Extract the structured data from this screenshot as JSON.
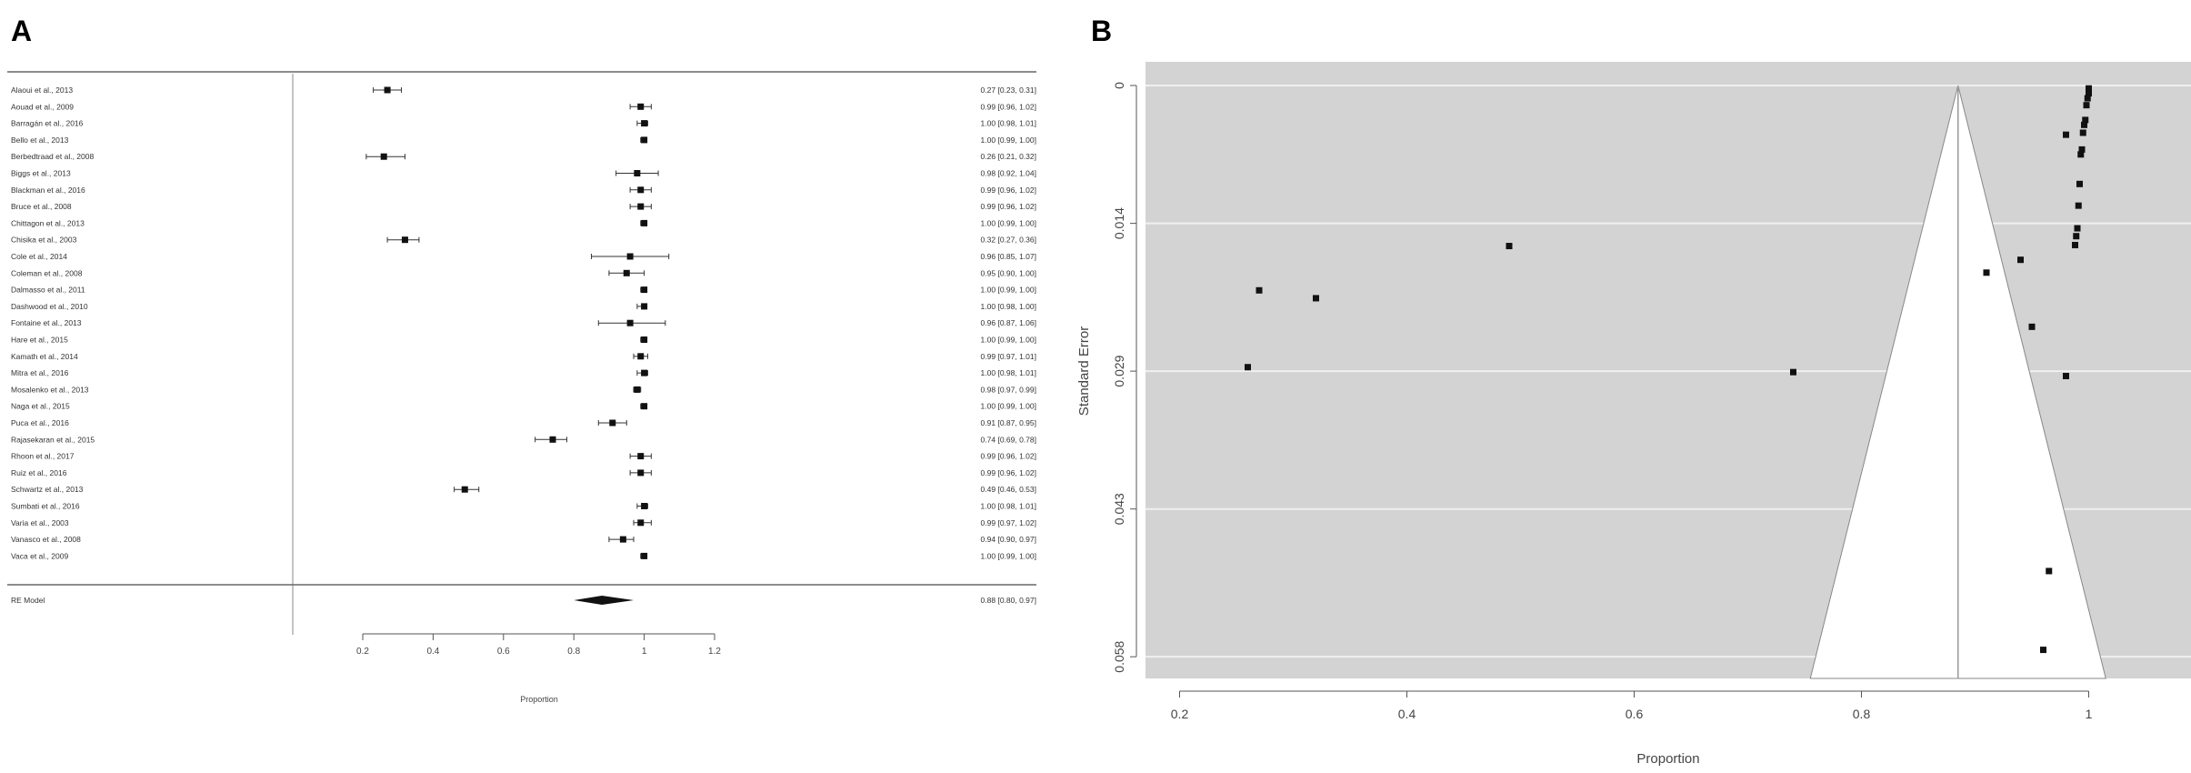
{
  "panels": {
    "a_label": "A",
    "b_label": "B"
  },
  "chart_data": [
    {
      "type": "forest",
      "panel": "A",
      "xlabel": "Proportion",
      "xticks": [
        0.2,
        0.4,
        0.6,
        0.8,
        1,
        1.2
      ],
      "xlim": [
        0.2,
        1.2
      ],
      "studies": [
        {
          "label": "Alaoui et al., 2013",
          "est": 0.27,
          "lo": 0.23,
          "hi": 0.31,
          "ci_text": "0.27 [0.23, 0.31]"
        },
        {
          "label": "Aouad et al., 2009",
          "est": 0.99,
          "lo": 0.96,
          "hi": 1.02,
          "ci_text": "0.99 [0.96, 1.02]"
        },
        {
          "label": "Barragán et al., 2016",
          "est": 1.0,
          "lo": 0.98,
          "hi": 1.01,
          "ci_text": "1.00 [0.98, 1.01]"
        },
        {
          "label": "Bello et al., 2013",
          "est": 1.0,
          "lo": 0.99,
          "hi": 1.0,
          "ci_text": "1.00 [0.99, 1.00]"
        },
        {
          "label": "Berbedtraad et al., 2008",
          "est": 0.26,
          "lo": 0.21,
          "hi": 0.32,
          "ci_text": "0.26 [0.21, 0.32]"
        },
        {
          "label": "Biggs et al., 2013",
          "est": 0.98,
          "lo": 0.92,
          "hi": 1.04,
          "ci_text": "0.98 [0.92, 1.04]"
        },
        {
          "label": "Blackman et al., 2016",
          "est": 0.99,
          "lo": 0.96,
          "hi": 1.02,
          "ci_text": "0.99 [0.96, 1.02]"
        },
        {
          "label": "Bruce et al., 2008",
          "est": 0.99,
          "lo": 0.96,
          "hi": 1.02,
          "ci_text": "0.99 [0.96, 1.02]"
        },
        {
          "label": "Chittagon et al., 2013",
          "est": 1.0,
          "lo": 0.99,
          "hi": 1.0,
          "ci_text": "1.00 [0.99, 1.00]"
        },
        {
          "label": "Chisika et al., 2003",
          "est": 0.32,
          "lo": 0.27,
          "hi": 0.36,
          "ci_text": "0.32 [0.27, 0.36]"
        },
        {
          "label": "Cole et al., 2014",
          "est": 0.96,
          "lo": 0.85,
          "hi": 1.07,
          "ci_text": "0.96 [0.85, 1.07]"
        },
        {
          "label": "Coleman et al., 2008",
          "est": 0.95,
          "lo": 0.9,
          "hi": 1.0,
          "ci_text": "0.95 [0.90, 1.00]"
        },
        {
          "label": "Dalmasso et al., 2011",
          "est": 1.0,
          "lo": 0.99,
          "hi": 1.0,
          "ci_text": "1.00 [0.99, 1.00]"
        },
        {
          "label": "Dashwood et al., 2010",
          "est": 1.0,
          "lo": 0.98,
          "hi": 1.0,
          "ci_text": "1.00 [0.98, 1.00]"
        },
        {
          "label": "Fontaine et al., 2013",
          "est": 0.96,
          "lo": 0.87,
          "hi": 1.06,
          "ci_text": "0.96 [0.87, 1.06]"
        },
        {
          "label": "Hare et al., 2015",
          "est": 1.0,
          "lo": 0.99,
          "hi": 1.0,
          "ci_text": "1.00 [0.99, 1.00]"
        },
        {
          "label": "Kamath et al., 2014",
          "est": 0.99,
          "lo": 0.97,
          "hi": 1.01,
          "ci_text": "0.99 [0.97, 1.01]"
        },
        {
          "label": "Mitra et al., 2016",
          "est": 1.0,
          "lo": 0.98,
          "hi": 1.01,
          "ci_text": "1.00 [0.98, 1.01]"
        },
        {
          "label": "Mosalenko et al., 2013",
          "est": 0.98,
          "lo": 0.97,
          "hi": 0.99,
          "ci_text": "0.98 [0.97, 0.99]"
        },
        {
          "label": "Naga et al., 2015",
          "est": 1.0,
          "lo": 0.99,
          "hi": 1.0,
          "ci_text": "1.00 [0.99, 1.00]"
        },
        {
          "label": "Puca et al., 2016",
          "est": 0.91,
          "lo": 0.87,
          "hi": 0.95,
          "ci_text": "0.91 [0.87, 0.95]"
        },
        {
          "label": "Rajasekaran et al., 2015",
          "est": 0.74,
          "lo": 0.69,
          "hi": 0.78,
          "ci_text": "0.74 [0.69, 0.78]"
        },
        {
          "label": "Rhoon et al., 2017",
          "est": 0.99,
          "lo": 0.96,
          "hi": 1.02,
          "ci_text": "0.99 [0.96, 1.02]"
        },
        {
          "label": "Ruiz et al., 2016",
          "est": 0.99,
          "lo": 0.96,
          "hi": 1.02,
          "ci_text": "0.99 [0.96, 1.02]"
        },
        {
          "label": "Schwartz et al., 2013",
          "est": 0.49,
          "lo": 0.46,
          "hi": 0.53,
          "ci_text": "0.49 [0.46, 0.53]"
        },
        {
          "label": "Sumbati et al., 2016",
          "est": 1.0,
          "lo": 0.98,
          "hi": 1.01,
          "ci_text": "1.00 [0.98, 1.01]"
        },
        {
          "label": "Varia et al., 2003",
          "est": 0.99,
          "lo": 0.97,
          "hi": 1.02,
          "ci_text": "0.99 [0.97, 1.02]"
        },
        {
          "label": "Vanasco et al., 2008",
          "est": 0.94,
          "lo": 0.9,
          "hi": 0.97,
          "ci_text": "0.94 [0.90, 0.97]"
        },
        {
          "label": "Vaca et al., 2009",
          "est": 1.0,
          "lo": 0.99,
          "hi": 1.0,
          "ci_text": "1.00 [0.99, 1.00]"
        }
      ],
      "summary": {
        "label": "RE Model",
        "est": 0.88,
        "lo": 0.8,
        "hi": 0.97,
        "ci_text": "0.88 [0.80, 0.97]"
      }
    },
    {
      "type": "scatter",
      "subtype": "funnel",
      "panel": "B",
      "xlabel": "Proportion",
      "ylabel": "Standard Error",
      "xticks": [
        0.2,
        0.4,
        0.6,
        0.8,
        1
      ],
      "xtick_labels": [
        "0.2",
        "0.4",
        "0.6",
        "0.8",
        "1"
      ],
      "xlim": [
        0.17,
        1.09
      ],
      "yticks": [
        0,
        0.014,
        0.029,
        0.043,
        0.058
      ],
      "ytick_labels": [
        "0",
        "0.014",
        "0.029",
        "0.043",
        "0.058"
      ],
      "ylim": [
        0,
        0.0602
      ],
      "y_reversed": true,
      "center": 0.885,
      "grid": true,
      "background": "#d3d3d3",
      "points": [
        {
          "x": 1.0,
          "y": 0.0003
        },
        {
          "x": 1.0,
          "y": 0.0008
        },
        {
          "x": 0.999,
          "y": 0.0013
        },
        {
          "x": 0.998,
          "y": 0.002
        },
        {
          "x": 0.997,
          "y": 0.0035
        },
        {
          "x": 0.996,
          "y": 0.004
        },
        {
          "x": 0.995,
          "y": 0.0048
        },
        {
          "x": 0.994,
          "y": 0.0065
        },
        {
          "x": 0.993,
          "y": 0.007
        },
        {
          "x": 0.98,
          "y": 0.005
        },
        {
          "x": 0.992,
          "y": 0.01
        },
        {
          "x": 0.991,
          "y": 0.0122
        },
        {
          "x": 0.99,
          "y": 0.0145
        },
        {
          "x": 0.989,
          "y": 0.0153
        },
        {
          "x": 0.988,
          "y": 0.0162
        },
        {
          "x": 0.94,
          "y": 0.0177
        },
        {
          "x": 0.91,
          "y": 0.019
        },
        {
          "x": 0.95,
          "y": 0.0245
        },
        {
          "x": 0.98,
          "y": 0.0295
        },
        {
          "x": 0.49,
          "y": 0.0163
        },
        {
          "x": 0.74,
          "y": 0.0291
        },
        {
          "x": 0.27,
          "y": 0.0208
        },
        {
          "x": 0.32,
          "y": 0.0216
        },
        {
          "x": 0.26,
          "y": 0.0286
        },
        {
          "x": 0.965,
          "y": 0.0493
        },
        {
          "x": 0.96,
          "y": 0.0573
        }
      ]
    }
  ]
}
